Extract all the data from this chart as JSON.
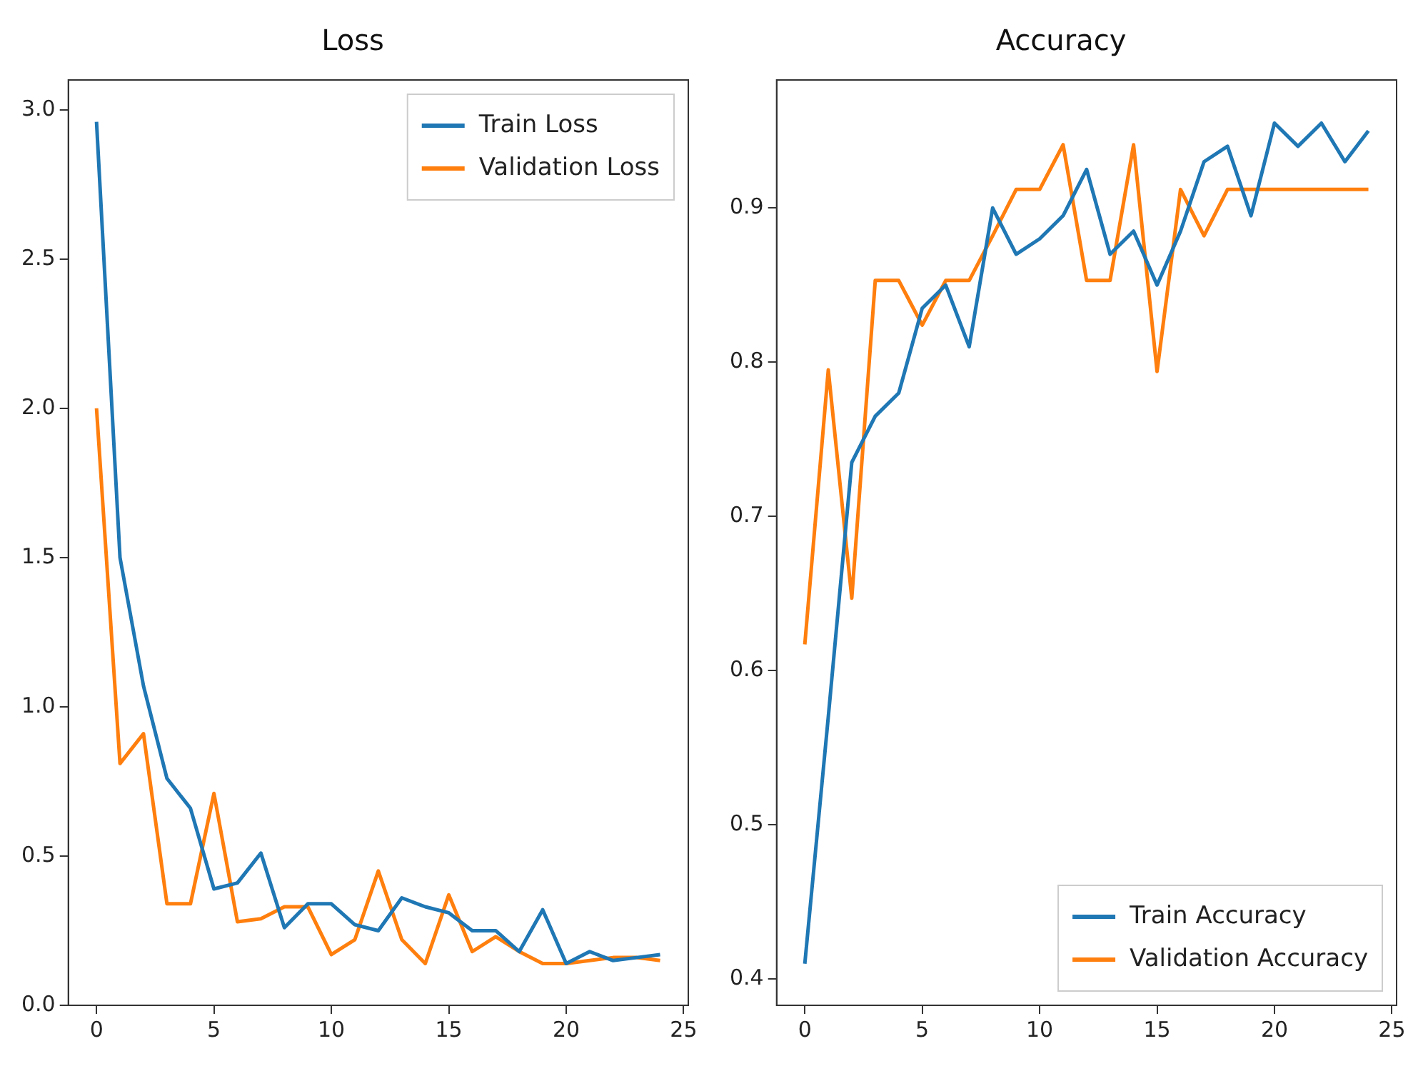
{
  "chart_data": [
    {
      "type": "line",
      "title": "Loss",
      "x": [
        0,
        1,
        2,
        3,
        4,
        5,
        6,
        7,
        8,
        9,
        10,
        11,
        12,
        13,
        14,
        15,
        16,
        17,
        18,
        19,
        20,
        21,
        22,
        23,
        24
      ],
      "xlim": [
        -1.2,
        25.2
      ],
      "xticks": [
        0,
        5,
        10,
        15,
        20,
        25
      ],
      "ylim": [
        0,
        3.1
      ],
      "yticks": [
        {
          "value": 0,
          "label": "0.0"
        },
        0.5,
        {
          "value": 1,
          "label": "1.0"
        },
        1.5,
        {
          "value": 2,
          "label": "2.0"
        },
        2.5,
        {
          "value": 3,
          "label": "3.0"
        }
      ],
      "legend": "top right",
      "series": [
        {
          "name": "Train Loss",
          "color": "#1f77b4",
          "values": [
            2.96,
            1.5,
            1.07,
            0.76,
            0.66,
            0.39,
            0.41,
            0.51,
            0.26,
            0.34,
            0.34,
            0.27,
            0.25,
            0.36,
            0.33,
            0.31,
            0.25,
            0.25,
            0.18,
            0.32,
            0.14,
            0.18,
            0.15,
            0.16,
            0.17
          ]
        },
        {
          "name": "Validation Loss",
          "color": "#ff7f0e",
          "values": [
            2.0,
            0.81,
            0.91,
            0.34,
            0.34,
            0.71,
            0.28,
            0.29,
            0.33,
            0.33,
            0.17,
            0.22,
            0.45,
            0.22,
            0.14,
            0.37,
            0.18,
            0.23,
            0.18,
            0.14,
            0.14,
            0.15,
            0.16,
            0.16,
            0.15
          ]
        }
      ]
    },
    {
      "type": "line",
      "title": "Accuracy",
      "x": [
        0,
        1,
        2,
        3,
        4,
        5,
        6,
        7,
        8,
        9,
        10,
        11,
        12,
        13,
        14,
        15,
        16,
        17,
        18,
        19,
        20,
        21,
        22,
        23,
        24
      ],
      "xlim": [
        -1.2,
        25.2
      ],
      "xticks": [
        0,
        5,
        10,
        15,
        20,
        25
      ],
      "ylim": [
        0.383,
        0.983
      ],
      "yticks": [
        0.4,
        0.5,
        0.6,
        0.7,
        0.8,
        0.9
      ],
      "legend": "bottom right",
      "series": [
        {
          "name": "Train Accuracy",
          "color": "#1f77b4",
          "values": [
            0.41,
            0.57,
            0.735,
            0.765,
            0.78,
            0.835,
            0.85,
            0.81,
            0.9,
            0.87,
            0.88,
            0.895,
            0.925,
            0.87,
            0.885,
            0.85,
            0.885,
            0.93,
            0.94,
            0.895,
            0.955,
            0.94,
            0.955,
            0.93,
            0.95
          ]
        },
        {
          "name": "Validation Accuracy",
          "color": "#ff7f0e",
          "values": [
            0.617,
            0.795,
            0.647,
            0.853,
            0.853,
            0.824,
            0.853,
            0.853,
            0.882,
            0.912,
            0.912,
            0.941,
            0.853,
            0.853,
            0.941,
            0.794,
            0.912,
            0.882,
            0.912,
            0.912,
            0.912,
            0.912,
            0.912,
            0.912,
            0.912
          ]
        }
      ]
    }
  ]
}
